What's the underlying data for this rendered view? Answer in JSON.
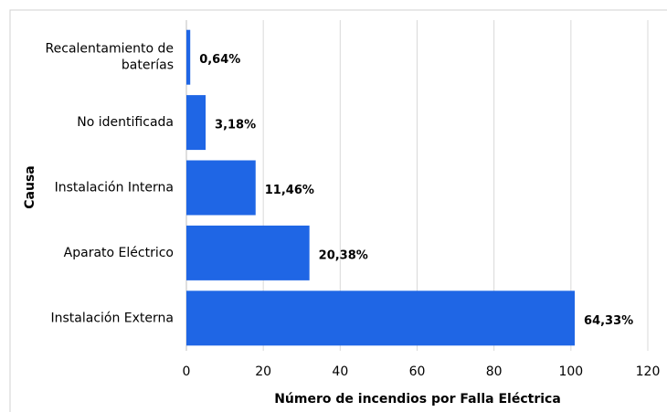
{
  "chart_data": {
    "type": "hbar",
    "xlabel": "Número de incendios por Falla Eléctrica",
    "ylabel": "Causa",
    "categories": [
      "Recalentamiento de baterías",
      "No identificada",
      "Instalación Interna",
      "Aparato Eléctrico",
      "Instalación Externa"
    ],
    "values": [
      1,
      5,
      18,
      32,
      101
    ],
    "share_labels": [
      "0,64%",
      "3,18%",
      "11,46%",
      "20,38%",
      "64,33%"
    ],
    "color": "#1f66e5",
    "xlim": [
      0,
      120
    ],
    "xticks": [
      0,
      20,
      40,
      60,
      80,
      100,
      120
    ],
    "grid": true
  }
}
